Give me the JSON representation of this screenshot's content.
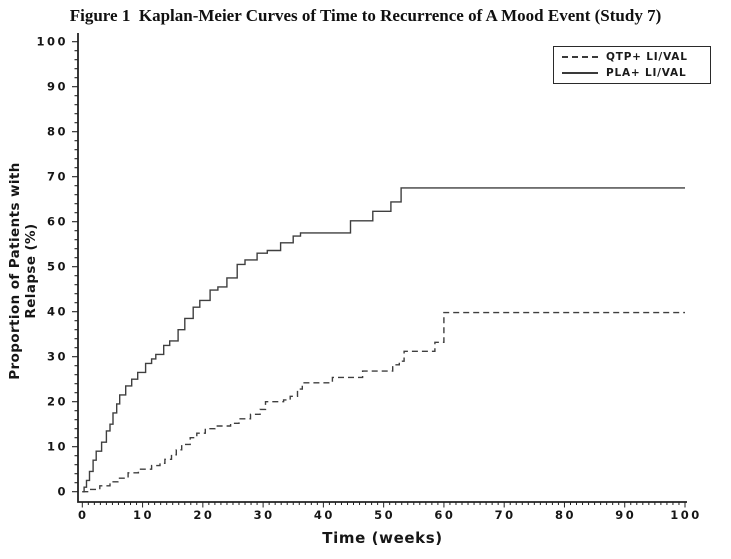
{
  "figure": {
    "title": "Figure 1  Kaplan-Meier Curves of Time to Recurrence of A Mood Event (Study 7)"
  },
  "chart_data": {
    "type": "line",
    "subtype": "kaplan-meier-step",
    "title": "Figure 1  Kaplan-Meier Curves of Time to Recurrence of A Mood Event (Study 7)",
    "xlabel": "Time (weeks)",
    "ylabel": "Proportion of Patients with Relapse (%)",
    "xlim": [
      0,
      100
    ],
    "ylim": [
      0,
      100
    ],
    "x_major_ticks": [
      0,
      10,
      20,
      30,
      40,
      50,
      60,
      70,
      80,
      90,
      100
    ],
    "y_major_ticks": [
      0,
      10,
      20,
      30,
      40,
      50,
      60,
      70,
      80,
      90,
      100
    ],
    "x_minor_step": 1,
    "y_minor_step": 2,
    "grid": false,
    "legend_position": "top-right",
    "line_color": "#3f3f3f",
    "axis_color": "#222222",
    "text_color": "#161616",
    "series": [
      {
        "name": "QTP+ LI/VAL",
        "style": "dashed",
        "final_value_pct": 40,
        "points": [
          [
            0,
            0
          ],
          [
            1,
            0.5
          ],
          [
            2.9,
            1.3
          ],
          [
            4.6,
            2.2
          ],
          [
            5.9,
            3
          ],
          [
            7.6,
            4.2
          ],
          [
            9.3,
            5
          ],
          [
            11.5,
            5.8
          ],
          [
            12.9,
            6.3
          ],
          [
            13.7,
            7.2
          ],
          [
            14.8,
            8.2
          ],
          [
            15.6,
            9.3
          ],
          [
            16.5,
            10.5
          ],
          [
            17.9,
            12
          ],
          [
            19,
            13
          ],
          [
            20.4,
            14
          ],
          [
            22,
            14.6
          ],
          [
            24.6,
            15.2
          ],
          [
            26,
            16.2
          ],
          [
            27.9,
            17.2
          ],
          [
            29.5,
            18.3
          ],
          [
            30.4,
            20
          ],
          [
            33.4,
            20.4
          ],
          [
            34.5,
            21.2
          ],
          [
            35.7,
            22.8
          ],
          [
            36.5,
            24.2
          ],
          [
            41.5,
            25.4
          ],
          [
            46.5,
            26.8
          ],
          [
            51.5,
            28.2
          ],
          [
            52.6,
            29
          ],
          [
            53.4,
            31.2
          ],
          [
            58.5,
            33.2
          ],
          [
            60,
            39.8
          ],
          [
            100,
            39.8
          ]
        ]
      },
      {
        "name": "PLA+ LI/VAL",
        "style": "solid",
        "final_value_pct": 67.5,
        "points": [
          [
            0,
            0
          ],
          [
            0.3,
            1
          ],
          [
            0.7,
            2.5
          ],
          [
            1.2,
            4.5
          ],
          [
            1.8,
            7
          ],
          [
            2.3,
            9
          ],
          [
            3.2,
            11
          ],
          [
            4,
            13.5
          ],
          [
            4.6,
            15
          ],
          [
            5.1,
            17.5
          ],
          [
            5.7,
            19.5
          ],
          [
            6.2,
            21.5
          ],
          [
            7.2,
            23.5
          ],
          [
            8.2,
            25
          ],
          [
            9.2,
            26.5
          ],
          [
            10.5,
            28.5
          ],
          [
            11.5,
            29.5
          ],
          [
            12.2,
            30.5
          ],
          [
            13.5,
            32.5
          ],
          [
            14.5,
            33.5
          ],
          [
            15.9,
            36
          ],
          [
            17,
            38.5
          ],
          [
            18.4,
            41
          ],
          [
            19.5,
            42.5
          ],
          [
            21.2,
            44.8
          ],
          [
            22.5,
            45.5
          ],
          [
            24,
            47.5
          ],
          [
            25.7,
            50.5
          ],
          [
            27,
            51.5
          ],
          [
            29,
            53
          ],
          [
            30.7,
            53.6
          ],
          [
            32.9,
            55.3
          ],
          [
            35,
            56.8
          ],
          [
            36.2,
            57.5
          ],
          [
            44.5,
            60.2
          ],
          [
            48.2,
            62.3
          ],
          [
            51.2,
            64.4
          ],
          [
            52.9,
            67.5
          ],
          [
            100,
            67.5
          ]
        ]
      }
    ]
  }
}
